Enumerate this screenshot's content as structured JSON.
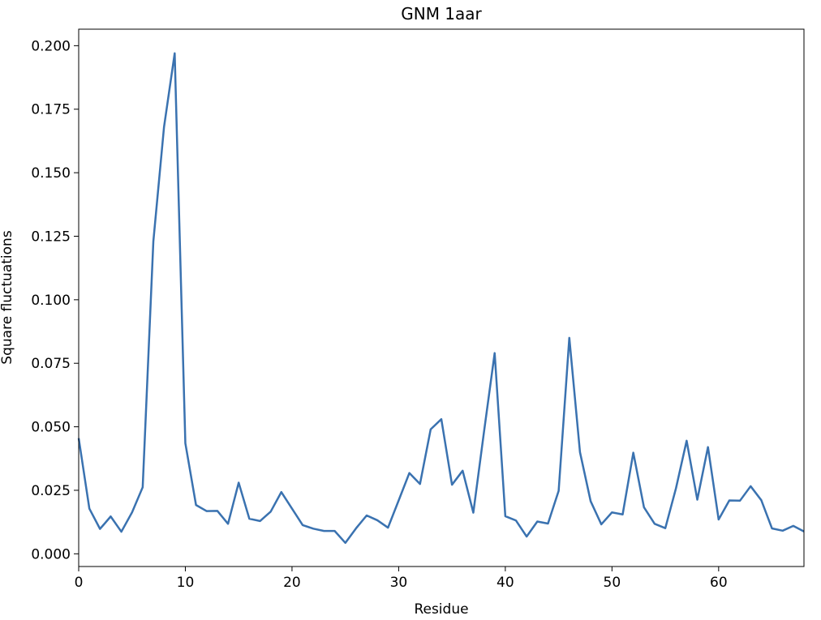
{
  "chart_data": {
    "type": "line",
    "title": "GNM 1aar",
    "xlabel": "Residue",
    "ylabel": "Square fluctuations",
    "xlim": [
      0,
      68
    ],
    "ylim": [
      -0.005,
      0.2065
    ],
    "xticks": [
      0,
      10,
      20,
      30,
      40,
      50,
      60
    ],
    "xtick_labels": [
      "0",
      "10",
      "20",
      "30",
      "40",
      "50",
      "60"
    ],
    "yticks": [
      0.0,
      0.025,
      0.05,
      0.075,
      0.1,
      0.125,
      0.15,
      0.175,
      0.2
    ],
    "ytick_labels": [
      "0.000",
      "0.025",
      "0.050",
      "0.075",
      "0.100",
      "0.125",
      "0.150",
      "0.175",
      "0.200"
    ],
    "grid": false,
    "legend": "none",
    "line_color": "#3a72b0",
    "series": [
      {
        "x": [
          0,
          1,
          2,
          3,
          4,
          5,
          6,
          7,
          8,
          9,
          10,
          11,
          12,
          13,
          14,
          15,
          16,
          17,
          18,
          19,
          20,
          21,
          22,
          23,
          24,
          25,
          26,
          27,
          28,
          29,
          30,
          31,
          32,
          33,
          34,
          35,
          36,
          37,
          38,
          39,
          40,
          41,
          42,
          43,
          44,
          45,
          46,
          47,
          48,
          49,
          50,
          51,
          52,
          53,
          54,
          55,
          56,
          57,
          58,
          59,
          60,
          61,
          62,
          63,
          64,
          65,
          66,
          67,
          68
        ],
        "values": [
          0.0455,
          0.0178,
          0.0098,
          0.0147,
          0.0087,
          0.0163,
          0.0262,
          0.123,
          0.168,
          0.197,
          0.0435,
          0.0192,
          0.0168,
          0.0169,
          0.0118,
          0.028,
          0.0138,
          0.0129,
          0.0166,
          0.0243,
          0.0178,
          0.0113,
          0.0099,
          0.009,
          0.009,
          0.0043,
          0.01,
          0.0151,
          0.0132,
          0.0103,
          0.021,
          0.0318,
          0.0275,
          0.049,
          0.053,
          0.0272,
          0.0327,
          0.0162,
          0.048,
          0.079,
          0.0148,
          0.0131,
          0.0068,
          0.0127,
          0.0119,
          0.0248,
          0.085,
          0.04,
          0.0207,
          0.0116,
          0.0163,
          0.0155,
          0.0398,
          0.0183,
          0.0118,
          0.0101,
          0.0258,
          0.0445,
          0.0213,
          0.042,
          0.0135,
          0.021,
          0.0209,
          0.0266,
          0.0211,
          0.01,
          0.0091,
          0.011,
          0.0088
        ]
      }
    ]
  }
}
